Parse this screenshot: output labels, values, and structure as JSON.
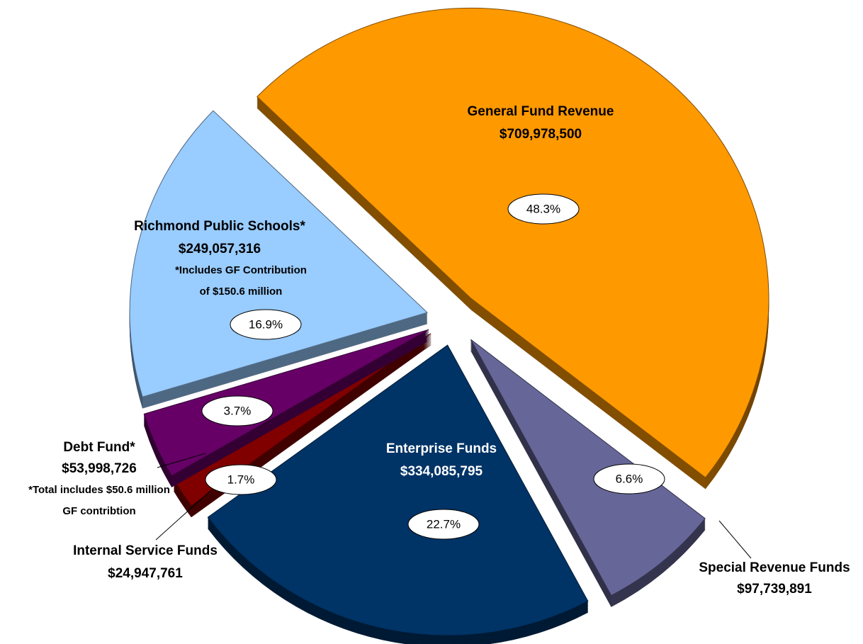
{
  "chart_data": {
    "type": "pie",
    "categories": [
      "General Fund Revenue",
      "Special Revenue Funds",
      "Enterprise Funds",
      "Internal Service Funds",
      "Debt Fund*",
      "Richmond Public Schools*"
    ],
    "values": [
      48.3,
      6.6,
      22.7,
      1.7,
      3.7,
      16.9
    ],
    "value_labels": [
      "48.3%",
      "6.6%",
      "22.7%",
      "1.7%",
      "3.7%",
      "16.9%"
    ],
    "amounts": [
      709978500,
      97739891,
      334085795,
      24947761,
      53998726,
      249057316
    ],
    "amount_labels": [
      "$709,978,500",
      "$97,739,891",
      "$334,085,795",
      "$24,947,761",
      "$53,998,726",
      "$249,057,316"
    ],
    "colors": [
      "#ff9900",
      "#666699",
      "#003366",
      "#800000",
      "#660066",
      "#99ccff"
    ],
    "annotations": [
      [
        "*Total includes $50.6 million",
        "GF contribtion"
      ],
      [
        "*Includes GF Contribution",
        "of $150.6 million"
      ]
    ]
  }
}
